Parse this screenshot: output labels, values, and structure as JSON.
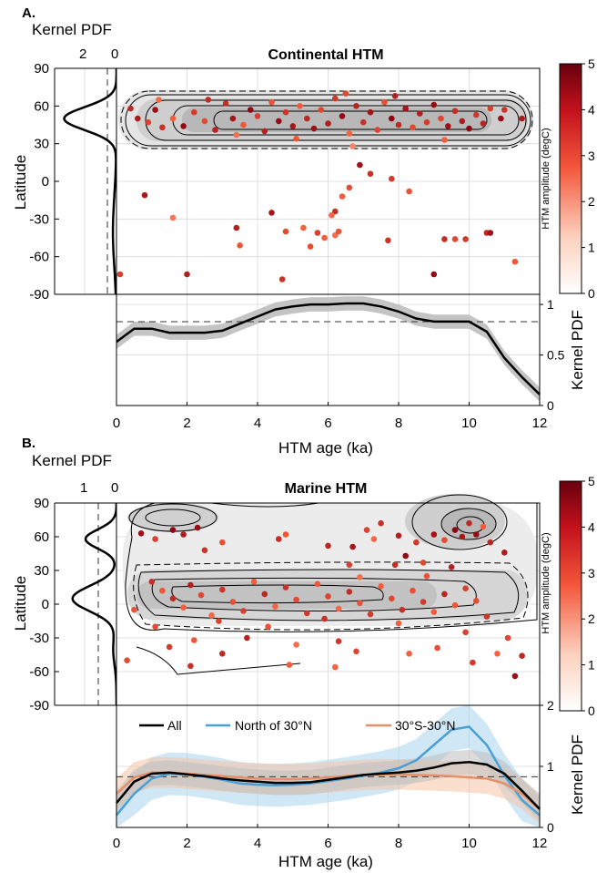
{
  "colors": {
    "pt_low": "#fdd0b8",
    "pt_mid": "#f25a3a",
    "pt_high": "#8b0010",
    "all": "#000000",
    "north": "#4a9fd4",
    "tropics": "#e6906a",
    "band_all": "#bdbdbd",
    "band_north": "#a9d3ee",
    "band_tropics": "#f5c5a8"
  },
  "chart_data": [
    {
      "panel": "A.",
      "type": "scatter",
      "title": "Continental HTM",
      "xlabel": "HTM age (ka)",
      "ylabel": "Latitude",
      "xlim": [
        0,
        12
      ],
      "ylim": [
        -90,
        90
      ],
      "yticks": [
        "90",
        "60",
        "30",
        "0",
        "-30",
        "-60",
        "-90"
      ],
      "xticks": [
        "0",
        "2",
        "4",
        "6",
        "8",
        "10",
        "12"
      ],
      "colorbar": {
        "label": "HTM amplitude (degC)",
        "range": [
          0,
          5
        ],
        "ticks": [
          "0",
          "1",
          "2",
          "3",
          "4",
          "5"
        ]
      },
      "side_pdf": {
        "label": "Kernel PDF",
        "ticks": [
          "2",
          "0"
        ],
        "xlim": [
          0,
          2.6
        ],
        "peak_lat": 50,
        "peak_value": 2.2
      },
      "bottom_pdf": {
        "ylabel": "Kernel PDF",
        "yticks": [
          "0",
          "0.5",
          "1"
        ],
        "ylim": [
          0,
          1.1
        ],
        "reference": 0.83,
        "series": [
          {
            "x": [
              0,
              0.5,
              1,
              1.5,
              2,
              2.5,
              3,
              3.5,
              4,
              4.5,
              5,
              5.5,
              6,
              6.5,
              7,
              7.5,
              8,
              8.5,
              9,
              9.5,
              10,
              10.5,
              11,
              11.5,
              12
            ],
            "y": [
              0.63,
              0.76,
              0.76,
              0.72,
              0.72,
              0.72,
              0.74,
              0.81,
              0.88,
              0.95,
              0.98,
              1.0,
              1.0,
              1.01,
              1.01,
              0.98,
              0.93,
              0.86,
              0.83,
              0.83,
              0.83,
              0.73,
              0.47,
              0.28,
              0.11
            ],
            "band": 0.07
          }
        ]
      },
      "points": [
        [
          0.6,
          50,
          4.2
        ],
        [
          0.9,
          47,
          3.1
        ],
        [
          1.1,
          57,
          4.6
        ],
        [
          1.3,
          43,
          3.6
        ],
        [
          1.6,
          50,
          2.4
        ],
        [
          1.9,
          44,
          4.8
        ],
        [
          2.2,
          55,
          3.3
        ],
        [
          2.5,
          48,
          2.9
        ],
        [
          2.8,
          41,
          4.0
        ],
        [
          3.1,
          62,
          3.7
        ],
        [
          3.3,
          50,
          4.4
        ],
        [
          3.6,
          45,
          2.6
        ],
        [
          3.8,
          57,
          4.9
        ],
        [
          4.0,
          52,
          3.2
        ],
        [
          4.2,
          40,
          4.1
        ],
        [
          4.4,
          63,
          2.7
        ],
        [
          4.6,
          48,
          4.7
        ],
        [
          4.8,
          55,
          3.5
        ],
        [
          5.0,
          44,
          4.3
        ],
        [
          5.2,
          60,
          2.5
        ],
        [
          5.4,
          50,
          3.9
        ],
        [
          5.6,
          42,
          4.6
        ],
        [
          5.8,
          57,
          3.0
        ],
        [
          6.0,
          46,
          4.2
        ],
        [
          6.2,
          66,
          3.4
        ],
        [
          6.4,
          52,
          4.8
        ],
        [
          6.6,
          38,
          2.3
        ],
        [
          6.8,
          60,
          4.0
        ],
        [
          7.0,
          47,
          3.6
        ],
        [
          7.2,
          55,
          4.5
        ],
        [
          7.4,
          41,
          3.1
        ],
        [
          7.6,
          63,
          2.8
        ],
        [
          7.8,
          50,
          4.9
        ],
        [
          8.0,
          45,
          3.8
        ],
        [
          8.2,
          58,
          4.4
        ],
        [
          8.4,
          43,
          2.9
        ],
        [
          8.6,
          54,
          4.1
        ],
        [
          8.8,
          47,
          3.3
        ],
        [
          9.0,
          61,
          4.7
        ],
        [
          9.2,
          50,
          3.0
        ],
        [
          9.4,
          44,
          4.5
        ],
        [
          9.6,
          56,
          3.7
        ],
        [
          9.8,
          48,
          4.2
        ],
        [
          10.0,
          42,
          4.9
        ],
        [
          10.2,
          53,
          3.4
        ],
        [
          10.4,
          46,
          4.0
        ],
        [
          10.6,
          58,
          3.2
        ],
        [
          10.9,
          50,
          4.6
        ],
        [
          11.0,
          57,
          3.5
        ],
        [
          1.2,
          65,
          2.2
        ],
        [
          2.6,
          65,
          3.8
        ],
        [
          3.4,
          37,
          2.0
        ],
        [
          5.1,
          34,
          2.6
        ],
        [
          6.7,
          28,
          1.6
        ],
        [
          7.9,
          68,
          4.1
        ],
        [
          9.3,
          33,
          2.4
        ],
        [
          6.9,
          13,
          4.5
        ],
        [
          7.2,
          6,
          3.6
        ],
        [
          6.6,
          -5,
          2.9
        ],
        [
          6.4,
          -12,
          2.5
        ],
        [
          6.2,
          -24,
          3.7
        ],
        [
          6.1,
          -27,
          2.2
        ],
        [
          7.8,
          2,
          3.3
        ],
        [
          8.3,
          -8,
          2.7
        ],
        [
          0.8,
          -11,
          4.3
        ],
        [
          1.6,
          -29,
          1.9
        ],
        [
          3.4,
          -37,
          4.1
        ],
        [
          3.5,
          -51,
          2.6
        ],
        [
          4.4,
          -25,
          4.4
        ],
        [
          4.8,
          -40,
          2.9
        ],
        [
          5.3,
          -37,
          2.3
        ],
        [
          5.5,
          -52,
          2.8
        ],
        [
          5.7,
          -41,
          3.2
        ],
        [
          5.9,
          -45,
          2.4
        ],
        [
          6.2,
          -43,
          2.1
        ],
        [
          6.3,
          -40,
          2.7
        ],
        [
          7.7,
          -47,
          3.5
        ],
        [
          9.3,
          -46,
          3.7
        ],
        [
          9.6,
          -46,
          3.0
        ],
        [
          9.9,
          -46,
          3.4
        ],
        [
          10.5,
          -41,
          3.8
        ],
        [
          11.3,
          -64,
          2.6
        ],
        [
          10.6,
          -41,
          4.5
        ],
        [
          0.1,
          -74,
          3.2
        ],
        [
          2.0,
          -74,
          4.1
        ],
        [
          4.7,
          -78,
          3.5
        ],
        [
          9.0,
          -74,
          4.9
        ],
        [
          0.4,
          58,
          3.8
        ],
        [
          11.5,
          50,
          4.2
        ],
        [
          6.5,
          70,
          3.0
        ]
      ]
    },
    {
      "panel": "B.",
      "type": "scatter",
      "title": "Marine HTM",
      "xlabel": "HTM age (ka)",
      "ylabel": "Latitude",
      "xlim": [
        0,
        12
      ],
      "ylim": [
        -90,
        90
      ],
      "yticks": [
        "90",
        "60",
        "30",
        "0",
        "-30",
        "-60",
        "-90"
      ],
      "xticks": [
        "0",
        "2",
        "4",
        "6",
        "8",
        "10",
        "12"
      ],
      "colorbar": {
        "label": "HTM amplitude (degC)",
        "range": [
          0,
          5
        ],
        "ticks": [
          "0",
          "1",
          "2",
          "3",
          "4",
          "5"
        ]
      },
      "side_pdf": {
        "label": "Kernel PDF",
        "ticks": [
          "1",
          "0"
        ],
        "xlim": [
          0,
          1.9
        ]
      },
      "bottom_pdf": {
        "ylabel": "Kernel PDF",
        "yticks": [
          "0",
          "1",
          "2"
        ],
        "ylim": [
          0,
          2
        ],
        "reference": 0.83,
        "legend": [
          "All",
          "North of 30°N",
          "30°S-30°N"
        ],
        "series": [
          {
            "name": "All",
            "x": [
              0,
              0.5,
              1,
              1.5,
              2,
              2.5,
              3,
              3.5,
              4,
              4.5,
              5,
              5.5,
              6,
              6.5,
              7,
              7.5,
              8,
              8.5,
              9,
              9.5,
              10,
              10.5,
              11,
              11.5,
              12
            ],
            "y": [
              0.4,
              0.75,
              0.88,
              0.9,
              0.87,
              0.84,
              0.8,
              0.77,
              0.75,
              0.73,
              0.73,
              0.74,
              0.78,
              0.82,
              0.86,
              0.88,
              0.9,
              0.93,
              0.98,
              1.05,
              1.07,
              1.03,
              0.88,
              0.6,
              0.3
            ],
            "band": 0.2
          },
          {
            "name": "North of 30°N",
            "x": [
              0,
              0.5,
              1,
              1.5,
              2,
              2.5,
              3,
              3.5,
              4,
              4.5,
              5,
              5.5,
              6,
              6.5,
              7,
              7.5,
              8,
              8.5,
              9,
              9.5,
              10,
              10.5,
              11,
              11.5,
              12
            ],
            "y": [
              0.2,
              0.55,
              0.8,
              0.88,
              0.87,
              0.83,
              0.78,
              0.72,
              0.7,
              0.69,
              0.7,
              0.72,
              0.76,
              0.8,
              0.85,
              0.9,
              0.97,
              1.1,
              1.35,
              1.6,
              1.65,
              1.35,
              0.85,
              0.45,
              0.2
            ],
            "band": 0.35
          },
          {
            "name": "30°S-30°N",
            "x": [
              0,
              0.5,
              1,
              1.5,
              2,
              2.5,
              3,
              3.5,
              4,
              4.5,
              5,
              5.5,
              6,
              6.5,
              7,
              7.5,
              8,
              8.5,
              9,
              9.5,
              10,
              10.5,
              11,
              11.5,
              12
            ],
            "y": [
              0.55,
              0.82,
              0.9,
              0.9,
              0.88,
              0.86,
              0.84,
              0.82,
              0.8,
              0.79,
              0.79,
              0.8,
              0.82,
              0.84,
              0.86,
              0.87,
              0.87,
              0.86,
              0.85,
              0.84,
              0.82,
              0.8,
              0.72,
              0.55,
              0.3
            ],
            "band": 0.25
          }
        ]
      },
      "points": [
        [
          0.7,
          63,
          4.6
        ],
        [
          1.1,
          58,
          3.2
        ],
        [
          1.6,
          66,
          4.9
        ],
        [
          1.9,
          62,
          4.2
        ],
        [
          2.3,
          68,
          4.7
        ],
        [
          3.0,
          55,
          2.8
        ],
        [
          2.5,
          48,
          3.5
        ],
        [
          4.6,
          58,
          3.7
        ],
        [
          4.8,
          62,
          2.6
        ],
        [
          6.0,
          52,
          3.9
        ],
        [
          6.7,
          51,
          4.4
        ],
        [
          7.1,
          66,
          3.1
        ],
        [
          7.3,
          58,
          2.2
        ],
        [
          7.5,
          72,
          3.6
        ],
        [
          8.0,
          61,
          4.1
        ],
        [
          8.2,
          43,
          4.8
        ],
        [
          8.5,
          55,
          3.4
        ],
        [
          9.0,
          62,
          4.5
        ],
        [
          9.3,
          57,
          2.9
        ],
        [
          9.6,
          66,
          4.9
        ],
        [
          9.8,
          60,
          4.3
        ],
        [
          10.0,
          72,
          3.8
        ],
        [
          10.2,
          62,
          4.7
        ],
        [
          10.4,
          69,
          2.5
        ],
        [
          10.6,
          55,
          3.9
        ],
        [
          11.0,
          46,
          4.2
        ],
        [
          8.7,
          37,
          3.0
        ],
        [
          7.9,
          35,
          3.7
        ],
        [
          8.8,
          25,
          2.7
        ],
        [
          9.5,
          33,
          4.0
        ],
        [
          6.6,
          35,
          3.2
        ],
        [
          6.9,
          24,
          2.1
        ],
        [
          1.0,
          20,
          3.6
        ],
        [
          1.3,
          12,
          2.6
        ],
        [
          1.6,
          5,
          3.8
        ],
        [
          1.9,
          -3,
          2.4
        ],
        [
          2.1,
          17,
          4.1
        ],
        [
          2.4,
          8,
          3.0
        ],
        [
          2.7,
          -10,
          2.2
        ],
        [
          3.0,
          13,
          3.5
        ],
        [
          3.3,
          2,
          2.8
        ],
        [
          3.6,
          -6,
          3.2
        ],
        [
          3.9,
          20,
          2.5
        ],
        [
          4.2,
          9,
          3.9
        ],
        [
          4.5,
          -2,
          2.3
        ],
        [
          4.8,
          15,
          3.6
        ],
        [
          5.1,
          4,
          2.9
        ],
        [
          5.4,
          -8,
          3.4
        ],
        [
          5.7,
          18,
          2.6
        ],
        [
          6.0,
          7,
          3.1
        ],
        [
          6.3,
          -4,
          2.2
        ],
        [
          6.6,
          11,
          3.7
        ],
        [
          6.9,
          1,
          2.7
        ],
        [
          7.2,
          -9,
          3.3
        ],
        [
          7.5,
          16,
          2.4
        ],
        [
          7.8,
          5,
          3.0
        ],
        [
          8.1,
          -5,
          3.6
        ],
        [
          8.4,
          12,
          2.8
        ],
        [
          8.7,
          2,
          3.4
        ],
        [
          9.0,
          -7,
          2.5
        ],
        [
          9.3,
          9,
          3.9
        ],
        [
          9.6,
          -1,
          2.6
        ],
        [
          9.9,
          14,
          3.2
        ],
        [
          10.2,
          3,
          2.9
        ],
        [
          10.5,
          -11,
          3.5
        ],
        [
          1.1,
          -20,
          2.9
        ],
        [
          2.9,
          -15,
          3.1
        ],
        [
          4.3,
          -20,
          2.7
        ],
        [
          5.9,
          -13,
          3.6
        ],
        [
          8.0,
          -17,
          2.4
        ],
        [
          1.5,
          -38,
          3.3
        ],
        [
          2.2,
          -32,
          2.6
        ],
        [
          3.7,
          -30,
          4.0
        ],
        [
          5.1,
          -36,
          2.1
        ],
        [
          6.3,
          -33,
          3.4
        ],
        [
          9.1,
          -39,
          2.8
        ],
        [
          9.9,
          -25,
          3.2
        ],
        [
          10.8,
          -44,
          2.3
        ],
        [
          11.5,
          -46,
          3.9
        ],
        [
          11.3,
          -64,
          4.6
        ],
        [
          2.1,
          -55,
          3.6
        ],
        [
          4.9,
          -54,
          2.5
        ],
        [
          6.8,
          -42,
          3.0
        ],
        [
          8.3,
          -44,
          2.4
        ],
        [
          10.1,
          -52,
          3.3
        ],
        [
          0.3,
          -50,
          2.9
        ],
        [
          0.5,
          -5,
          2.7
        ],
        [
          11.1,
          -30,
          3.0
        ],
        [
          6.2,
          -56,
          2.3
        ],
        [
          3.0,
          -44,
          3.8
        ]
      ]
    }
  ]
}
